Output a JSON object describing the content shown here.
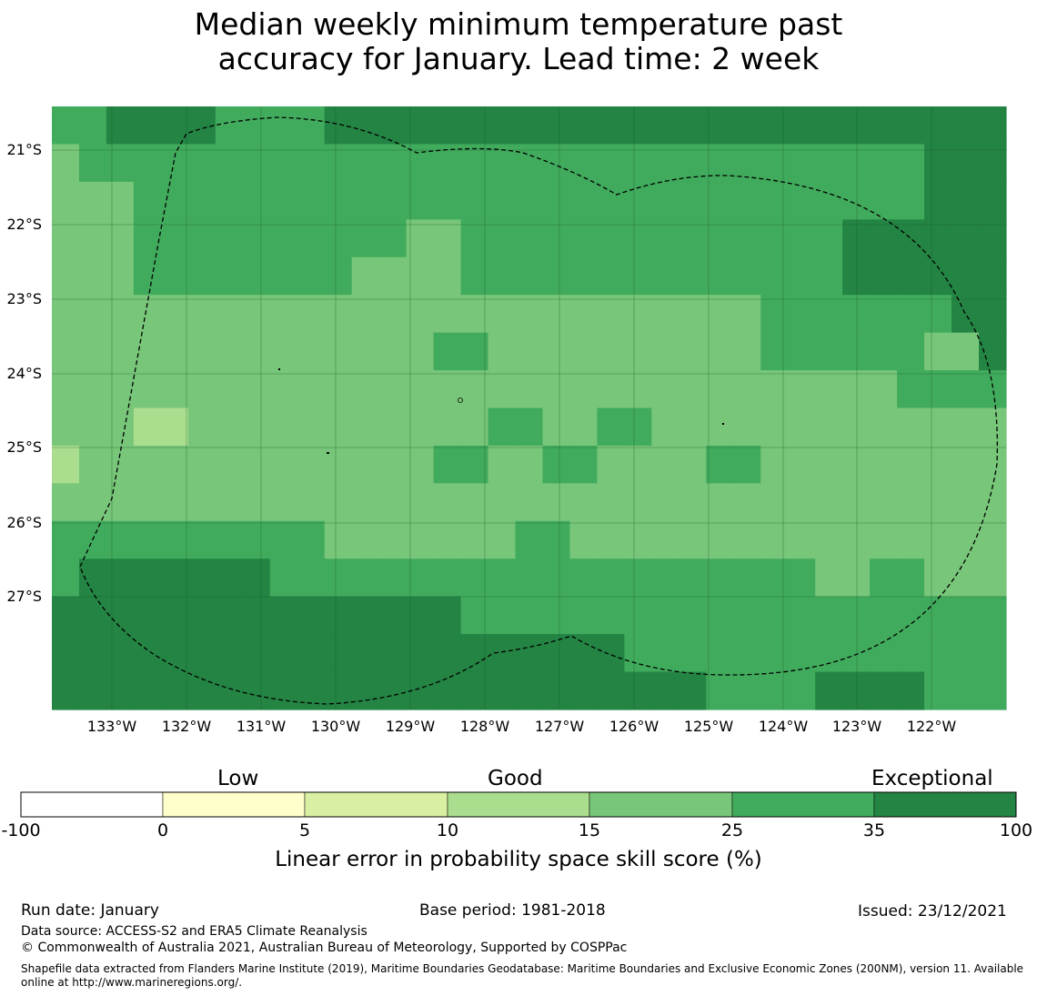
{
  "title_line1": "Median weekly minimum temperature past",
  "title_line2": "accuracy for January. Lead time: 2 week",
  "map": {
    "lat_labels": [
      "21°S",
      "22°S",
      "23°S",
      "24°S",
      "25°S",
      "26°S",
      "27°S"
    ],
    "lon_labels": [
      "133°W",
      "132°W",
      "131°W",
      "130°W",
      "129°W",
      "128°W",
      "127°W",
      "126°W",
      "125°W",
      "124°W",
      "123°W",
      "122°W"
    ],
    "legend_colors": {
      "c10_15": "#abdd8e",
      "c15_25": "#78c679",
      "c25_35": "#41ab5d",
      "c35_100": "#238443"
    },
    "grid_rows": [
      "GGDDDDGGGGDDDDDDDDDDDDDDDDDDDDDDDDD",
      "NGGGGGGGGGGGGGGGGGGGGGGGGGGGGGGGDDD",
      "NNNGGGGGGGGGGGGGGGGGGGGGGGGGGGGGDDD",
      "NNNGGGGGGGGGGNNGGGGGGGGGGGGGGDDDDDD",
      "NNNGGGGGGGGNNNNGGGGGGGGGGGGGGDDDDDD",
      "NNNNNNNNNNNNNNNNNNNNNNNNNNGGGGGGGDD",
      "NNNNNNNNNNNNNNGGNNNNNNNNNNGGGGGGNND",
      "NNNNNNNNNNNNNNNNNNNNNNNNNNNNNNNGGGG",
      "NNNLLNNNNNNNNNNNGGNNGGNNNNNNNNNNNNN",
      "LNNNNNNNNNNNNNGGNNGGNNNNGGNNNNNNNNN",
      "NNNNNNNNNNNNNNNNNNNNNNNNNNNNNNNNNNN",
      "GGGGGGGGGGNNNNNNNGGNNNNNNNNNNNNNNNN",
      "GDDDDDDDGGGGGGGGGGGGGGGGGGGGNNGGNNN",
      "DDDDDDDDDDDDDDDGGGGGGGGGGGGGGGGGGGG",
      "DDDDDDDDDDDDDDDDDDDDDGGGGGGGGGGGGGG",
      "DDDDDDDDDDDDDDDDDDDDDDDDGGGGDDDDGGG"
    ]
  },
  "colorbar": {
    "categories": [
      "Low",
      "Good",
      "Exceptional"
    ],
    "bins": [
      {
        "from": "-100",
        "to": "0",
        "color": "#ffffff"
      },
      {
        "from": "0",
        "to": "5",
        "color": "#ffffcc"
      },
      {
        "from": "5",
        "to": "10",
        "color": "#d9f0a3"
      },
      {
        "from": "10",
        "to": "15",
        "color": "#abdd8e"
      },
      {
        "from": "15",
        "to": "25",
        "color": "#78c679"
      },
      {
        "from": "25",
        "to": "35",
        "color": "#41ab5d"
      },
      {
        "from": "35",
        "to": "100",
        "color": "#238443"
      }
    ],
    "ticks": [
      "-100",
      "0",
      "5",
      "10",
      "15",
      "25",
      "35",
      "100"
    ],
    "label": "Linear error in probability space skill score (%)"
  },
  "footer": {
    "run_date": "Run date: January",
    "base_period": "Base period: 1981-2018",
    "issued": "Issued: 23/12/2021",
    "data_source": "Data source: ACCESS-S2 and ERA5 Climate Reanalysis",
    "copyright": "© Commonwealth of Australia 2021, Australian Bureau of Meteorology, Supported by COSPPac",
    "shapefile_line1": "Shapefile data extracted from Flanders Marine Institute (2019), Maritime Boundaries Geodatabase: Maritime Boundaries and Exclusive Economic Zones (200NM), version 11. Available",
    "shapefile_line2": "online at http://www.marineregions.org/."
  }
}
